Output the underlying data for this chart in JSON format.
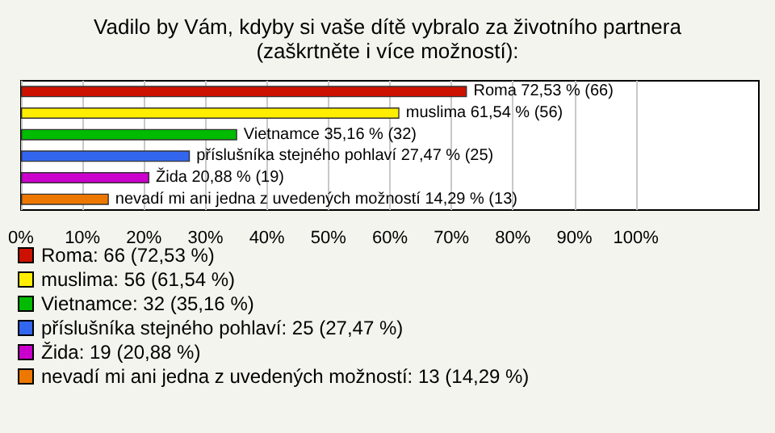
{
  "chart_data": {
    "type": "bar",
    "orientation": "horizontal",
    "title": "Vadilo by Vám, kdyby si vaše dítě vybralo za životního partnera\n(zaškrtněte i více možností):",
    "categories": [
      null,
      null,
      null,
      null,
      null,
      null
    ],
    "series": [
      {
        "name": "Roma: 66 (72,53 %)",
        "color": "#cc1100",
        "values": [
          72.53,
          null,
          null,
          null,
          null,
          null
        ],
        "value_labels": [
          "Roma 72,53 % (66)",
          null,
          null,
          null,
          null,
          null
        ]
      },
      {
        "name": "muslima: 56 (61,54 %)",
        "color": "#ffee00",
        "values": [
          null,
          61.54,
          null,
          null,
          null,
          null
        ],
        "value_labels": [
          null,
          "muslima 61,54 % (56)",
          null,
          null,
          null,
          null
        ]
      },
      {
        "name": "Vietnamce: 32 (35,16 %)",
        "color": "#00bb00",
        "values": [
          null,
          null,
          35.16,
          null,
          null,
          null
        ],
        "value_labels": [
          null,
          null,
          "Vietnamce 35,16 % (32)",
          null,
          null,
          null
        ]
      },
      {
        "name": "příslušníka stejného pohlaví: 25 (27,47 %)",
        "color": "#3366ee",
        "values": [
          null,
          null,
          null,
          27.47,
          null,
          null
        ],
        "value_labels": [
          null,
          null,
          null,
          "příslušníka stejného pohlaví 27,47 % (25)",
          null,
          null
        ]
      },
      {
        "name": "Žida: 19 (20,88 %)",
        "color": "#cc00cc",
        "values": [
          null,
          null,
          null,
          null,
          20.88,
          null
        ],
        "value_labels": [
          null,
          null,
          null,
          null,
          "Žida 20,88 % (19)",
          null
        ]
      },
      {
        "name": "nevadí mi ani jedna z uvedených možností: 13 (14,29 %)",
        "color": "#ee7700",
        "values": [
          null,
          null,
          null,
          null,
          null,
          14.29
        ],
        "value_labels": [
          null,
          null,
          null,
          null,
          null,
          "nevadí mi ani jedna z uvedených možností 14,29 % (13)"
        ]
      }
    ],
    "xlim": [
      0,
      120
    ],
    "xticks": [
      {
        "value": 0,
        "label": "0%"
      },
      {
        "value": 10,
        "label": "10%"
      },
      {
        "value": 20,
        "label": "20%"
      },
      {
        "value": 30,
        "label": "30%"
      },
      {
        "value": 40,
        "label": "40%"
      },
      {
        "value": 50,
        "label": "50%"
      },
      {
        "value": 60,
        "label": "60%"
      },
      {
        "value": 70,
        "label": "70%"
      },
      {
        "value": 80,
        "label": "80%"
      },
      {
        "value": 90,
        "label": "90%"
      },
      {
        "value": 100,
        "label": "100%"
      }
    ],
    "grid": "x",
    "legend": "bottom left",
    "tick_labels": "x"
  }
}
